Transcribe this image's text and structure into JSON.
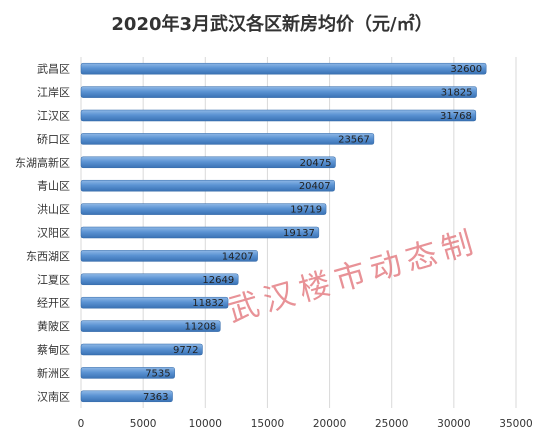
{
  "chart_data": {
    "type": "bar",
    "orientation": "horizontal",
    "title": "2020年3月武汉各区新房均价（元/㎡）",
    "categories": [
      "武昌区",
      "江岸区",
      "江汉区",
      "硚口区",
      "东湖高新区",
      "青山区",
      "洪山区",
      "汉阳区",
      "东西湖区",
      "江夏区",
      "经开区",
      "黄陂区",
      "蔡甸区",
      "新洲区",
      "汉南区"
    ],
    "values": [
      32600,
      31825,
      31768,
      23567,
      20475,
      20407,
      19719,
      19137,
      14207,
      12649,
      11832,
      11208,
      9772,
      7535,
      7363
    ],
    "xlim": [
      0,
      35000
    ],
    "xticks": [
      "0",
      "5000",
      "10000",
      "15000",
      "20000",
      "25000",
      "30000",
      "35000"
    ],
    "grid": true,
    "data_labels": true,
    "legend": "none",
    "bar_color": "#4a86c8",
    "watermark": "武汉楼市动态制"
  }
}
